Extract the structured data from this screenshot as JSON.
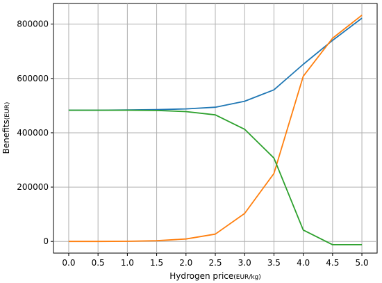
{
  "chart_data": {
    "type": "line",
    "title": "",
    "xlabel": "Hydrogen price",
    "xlabel_unit": "(EUR/kg)",
    "ylabel": "Benefits",
    "ylabel_unit": "(EUR)",
    "x": [
      0.0,
      0.5,
      1.0,
      1.5,
      2.0,
      2.5,
      3.0,
      3.5,
      4.0,
      4.5,
      5.0
    ],
    "x_ticks": [
      0.0,
      0.5,
      1.0,
      1.5,
      2.0,
      2.5,
      3.0,
      3.5,
      4.0,
      4.5,
      5.0
    ],
    "x_tick_labels": [
      "0.0",
      "0.5",
      "1.0",
      "1.5",
      "2.0",
      "2.5",
      "3.0",
      "3.5",
      "4.0",
      "4.5",
      "5.0"
    ],
    "y_ticks": [
      0,
      200000,
      400000,
      600000,
      800000
    ],
    "y_tick_labels": [
      "0",
      "200000",
      "400000",
      "600000",
      "800000"
    ],
    "xlim": [
      -0.26,
      5.26
    ],
    "ylim": [
      -43000,
      876000
    ],
    "grid": true,
    "legend": false,
    "series": [
      {
        "color": "#1f77b4",
        "values": [
          483000,
          483000,
          484000,
          485000,
          488000,
          494000,
          516000,
          558000,
          652000,
          740000,
          822000
        ]
      },
      {
        "color": "#ff7f0e",
        "values": [
          0,
          0,
          500,
          2500,
          9000,
          27000,
          103000,
          250000,
          608000,
          748000,
          833000
        ]
      },
      {
        "color": "#2ca02c",
        "values": [
          483000,
          483000,
          483000,
          482000,
          478000,
          466000,
          413000,
          307000,
          42000,
          -12000,
          -12000
        ]
      }
    ]
  }
}
